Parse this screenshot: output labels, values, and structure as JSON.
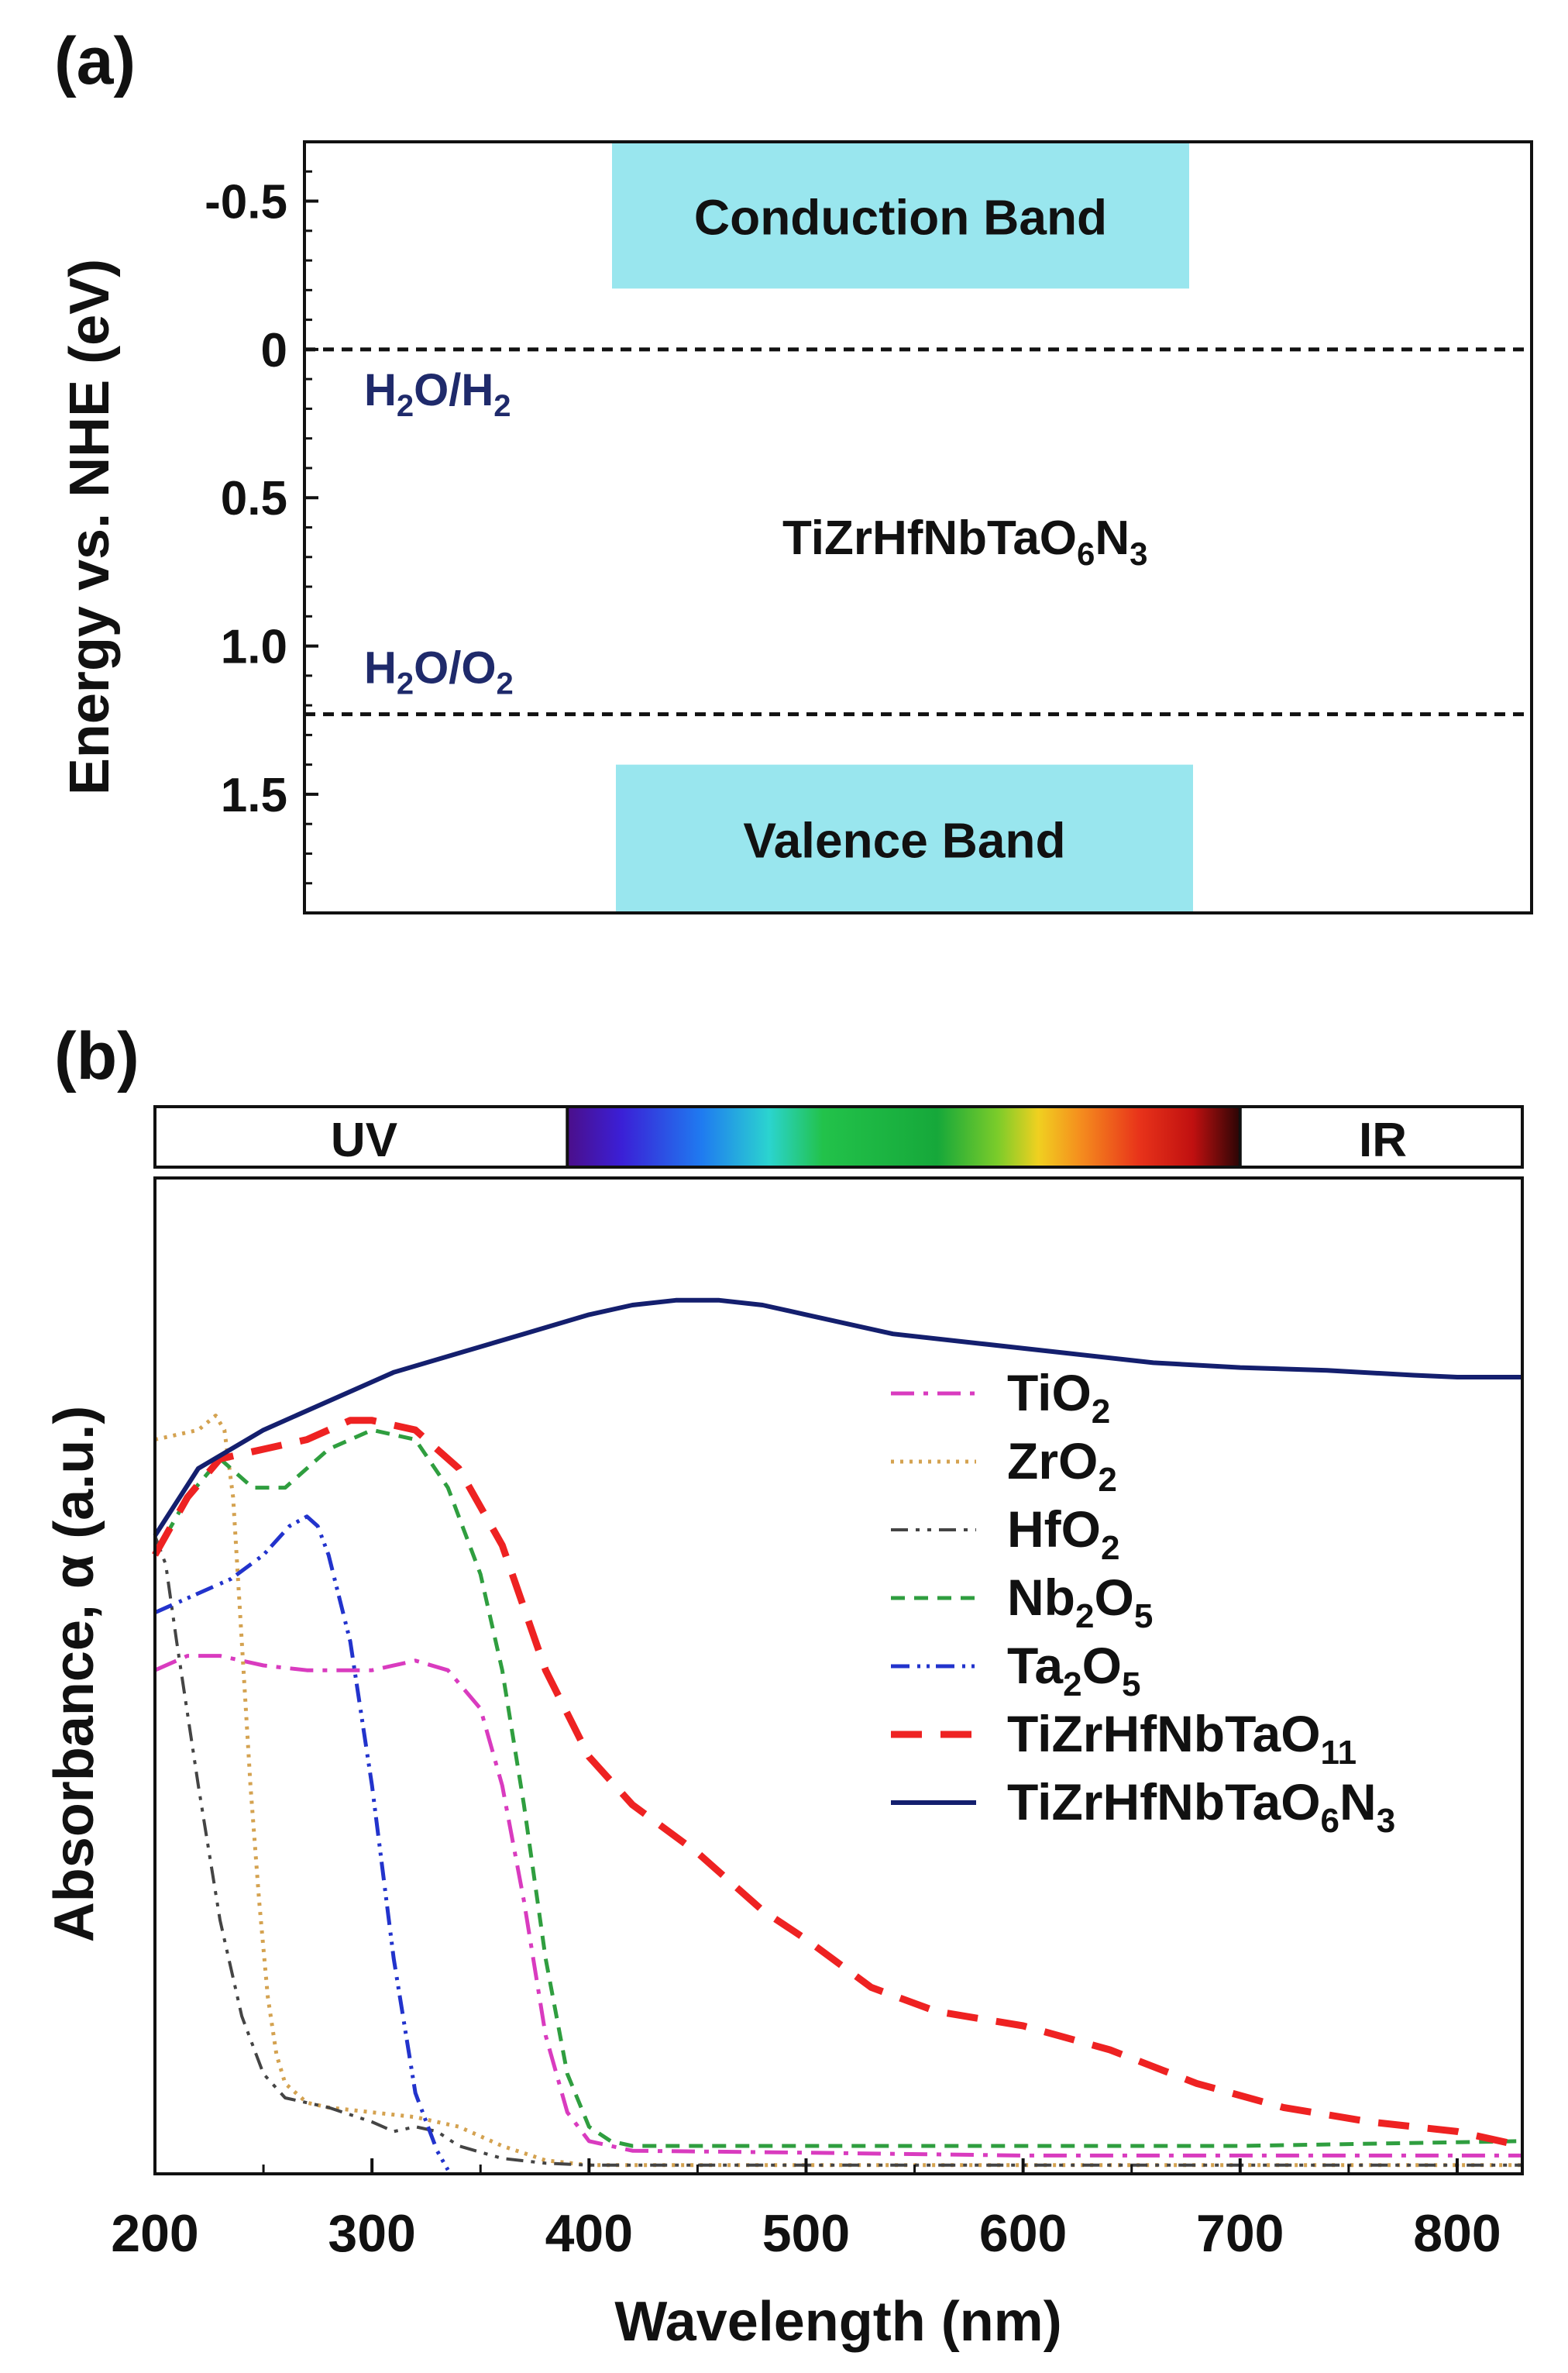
{
  "chart_data": [
    {
      "panel": "(a)",
      "type": "band-diagram",
      "ylabel": "Energy vs. NHE (eV)",
      "ylim": [
        -0.7,
        1.9
      ],
      "yticks": [
        "-0.5",
        "0",
        "0.5",
        "1.0",
        "1.5"
      ],
      "ytick_values": [
        -0.5,
        0,
        0.5,
        1.0,
        1.5
      ],
      "bands": [
        {
          "name": "Conduction Band",
          "from": -0.7,
          "to": -0.2,
          "color": "#99e6ee"
        },
        {
          "name": "Valence Band",
          "from": 1.4,
          "to": 1.9,
          "color": "#99e6ee"
        }
      ],
      "reference_levels": [
        {
          "label_main": "H",
          "label_sub1": "2",
          "label_mid": "O/H",
          "label_sub2": "2",
          "value": 0.0
        },
        {
          "label_main": "H",
          "label_sub1": "2",
          "label_mid": "O/O",
          "label_sub2": "2",
          "value": 1.23
        }
      ],
      "material": {
        "main": "TiZrHfNbTaO",
        "sub1": "6",
        "mid": "N",
        "sub2": "3"
      }
    },
    {
      "panel": "(b)",
      "type": "line",
      "xlabel": "Wavelength (nm)",
      "ylabel": "Absorbance, α (a.u.)",
      "xlim": [
        200,
        830
      ],
      "ylim": [
        0,
        1
      ],
      "xticks": [
        "200",
        "300",
        "400",
        "500",
        "600",
        "700",
        "800"
      ],
      "xtick_values": [
        200,
        300,
        400,
        500,
        600,
        700,
        800
      ],
      "spectrum_bar": {
        "uv_label": "UV",
        "ir_label": "IR",
        "visible_from": 390,
        "visible_to": 700
      },
      "series": [
        {
          "name": "TiO2",
          "legend_main": "TiO",
          "legend_sub": "2",
          "legend_tail": "",
          "legend_sub2": "",
          "color": "#d93bbf",
          "dash": "30 12 6 12",
          "width": 5,
          "x": [
            200,
            215,
            230,
            250,
            270,
            290,
            300,
            320,
            335,
            350,
            360,
            370,
            380,
            390,
            400,
            420,
            500,
            600,
            700,
            830
          ],
          "y": [
            0.52,
            0.535,
            0.535,
            0.525,
            0.52,
            0.52,
            0.52,
            0.53,
            0.52,
            0.48,
            0.4,
            0.28,
            0.14,
            0.06,
            0.03,
            0.02,
            0.018,
            0.015,
            0.015,
            0.015
          ]
        },
        {
          "name": "ZrO2",
          "legend_main": "ZrO",
          "legend_sub": "2",
          "legend_tail": "",
          "legend_sub2": "",
          "color": "#d4a250",
          "dash": "4 8",
          "width": 5,
          "x": [
            200,
            210,
            220,
            228,
            232,
            236,
            240,
            244,
            248,
            252,
            256,
            260,
            270,
            280,
            300,
            320,
            340,
            360,
            380,
            400,
            500,
            600,
            700,
            830
          ],
          "y": [
            0.76,
            0.765,
            0.77,
            0.785,
            0.77,
            0.7,
            0.55,
            0.4,
            0.28,
            0.18,
            0.12,
            0.09,
            0.07,
            0.065,
            0.06,
            0.055,
            0.045,
            0.025,
            0.01,
            0.005,
            0.005,
            0.005,
            0.005,
            0.005
          ]
        },
        {
          "name": "HfO2",
          "legend_main": "HfO",
          "legend_sub": "2",
          "legend_tail": "",
          "legend_sub2": "",
          "color": "#444444",
          "dash": "22 10 5 10 5 10",
          "width": 4,
          "x": [
            200,
            205,
            210,
            220,
            230,
            240,
            250,
            260,
            280,
            300,
            310,
            320,
            330,
            340,
            360,
            380,
            400,
            450,
            500,
            600,
            700,
            830
          ],
          "y": [
            0.66,
            0.63,
            0.55,
            0.4,
            0.26,
            0.16,
            0.1,
            0.075,
            0.065,
            0.05,
            0.04,
            0.045,
            0.04,
            0.025,
            0.012,
            0.007,
            0.005,
            0.005,
            0.005,
            0.005,
            0.005,
            0.005
          ]
        },
        {
          "name": "Nb2O5",
          "legend_main": "Nb",
          "legend_sub": "2",
          "legend_tail": "O",
          "legend_sub2": "5",
          "color": "#2f9e3f",
          "dash": "18 12",
          "width": 5,
          "x": [
            200,
            215,
            230,
            245,
            260,
            280,
            300,
            320,
            335,
            350,
            360,
            370,
            380,
            390,
            400,
            410,
            420,
            450,
            500,
            600,
            700,
            830
          ],
          "y": [
            0.64,
            0.7,
            0.74,
            0.71,
            0.71,
            0.75,
            0.77,
            0.76,
            0.71,
            0.62,
            0.52,
            0.38,
            0.22,
            0.1,
            0.045,
            0.03,
            0.025,
            0.025,
            0.025,
            0.025,
            0.025,
            0.03
          ]
        },
        {
          "name": "Ta2O5",
          "legend_main": "Ta",
          "legend_sub": "2",
          "legend_tail": "O",
          "legend_sub2": "5",
          "color": "#2233cc",
          "dash": "24 10 4 8 4 8",
          "width": 5,
          "x": [
            200,
            210,
            220,
            235,
            250,
            262,
            270,
            275,
            280,
            290,
            300,
            310,
            320,
            330,
            335
          ],
          "y": [
            0.58,
            0.59,
            0.6,
            0.615,
            0.64,
            0.67,
            0.68,
            0.67,
            0.64,
            0.55,
            0.4,
            0.22,
            0.08,
            0.02,
            0.0
          ]
        },
        {
          "name": "TiZrHfNbTaO11",
          "legend_main": "TiZrHfNbTaO",
          "legend_sub": "11",
          "legend_tail": "",
          "legend_sub2": "",
          "color": "#ee2222",
          "dash": "40 24",
          "width": 9,
          "x": [
            200,
            215,
            230,
            250,
            270,
            290,
            300,
            320,
            340,
            360,
            380,
            400,
            420,
            450,
            480,
            500,
            530,
            560,
            600,
            640,
            680,
            720,
            760,
            800,
            830
          ],
          "y": [
            0.64,
            0.7,
            0.74,
            0.75,
            0.76,
            0.78,
            0.78,
            0.77,
            0.73,
            0.65,
            0.52,
            0.43,
            0.38,
            0.33,
            0.27,
            0.24,
            0.19,
            0.165,
            0.15,
            0.125,
            0.09,
            0.065,
            0.05,
            0.04,
            0.025
          ]
        },
        {
          "name": "TiZrHfNbTaO6N3",
          "legend_main": "TiZrHfNbTaO",
          "legend_sub": "6",
          "legend_tail": "N",
          "legend_sub2": "3",
          "color": "#141f6e",
          "dash": "",
          "width": 6,
          "x": [
            200,
            220,
            250,
            280,
            310,
            340,
            370,
            400,
            420,
            440,
            460,
            480,
            500,
            540,
            580,
            620,
            660,
            700,
            740,
            780,
            800,
            830
          ],
          "y": [
            0.66,
            0.73,
            0.77,
            0.8,
            0.83,
            0.85,
            0.87,
            0.89,
            0.9,
            0.905,
            0.905,
            0.9,
            0.89,
            0.87,
            0.86,
            0.85,
            0.84,
            0.835,
            0.832,
            0.827,
            0.825,
            0.825
          ]
        }
      ]
    }
  ]
}
